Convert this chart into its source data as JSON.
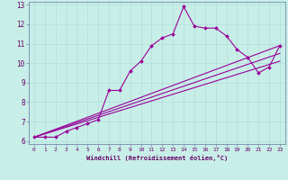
{
  "xlabel": "Windchill (Refroidissement éolien,°C)",
  "background_color": "#c8eee8",
  "grid_color": "#b0ddd8",
  "line_color": "#990099",
  "spine_color": "#7788aa",
  "xlim_min": -0.5,
  "xlim_max": 23.5,
  "ylim_min": 5.85,
  "ylim_max": 13.15,
  "yticks": [
    6,
    7,
    8,
    9,
    10,
    11,
    12,
    13
  ],
  "xticks": [
    0,
    1,
    2,
    3,
    4,
    5,
    6,
    7,
    8,
    9,
    10,
    11,
    12,
    13,
    14,
    15,
    16,
    17,
    18,
    19,
    20,
    21,
    22,
    23
  ],
  "line1_x": [
    0,
    1,
    2,
    3,
    4,
    5,
    6,
    7,
    8,
    9,
    10,
    11,
    12,
    13,
    14,
    15,
    16,
    17,
    18,
    19,
    20,
    21,
    22,
    23
  ],
  "line1_y": [
    6.2,
    6.2,
    6.2,
    6.5,
    6.7,
    6.9,
    7.1,
    8.6,
    8.6,
    9.6,
    10.1,
    10.9,
    11.3,
    11.5,
    12.9,
    11.9,
    11.8,
    11.8,
    11.4,
    10.7,
    10.3,
    9.5,
    9.8,
    10.9
  ],
  "line2_x": [
    0,
    23
  ],
  "line2_y": [
    6.2,
    10.9
  ],
  "line3_x": [
    0,
    23
  ],
  "line3_y": [
    6.2,
    10.5
  ],
  "line4_x": [
    0,
    23
  ],
  "line4_y": [
    6.2,
    10.1
  ]
}
